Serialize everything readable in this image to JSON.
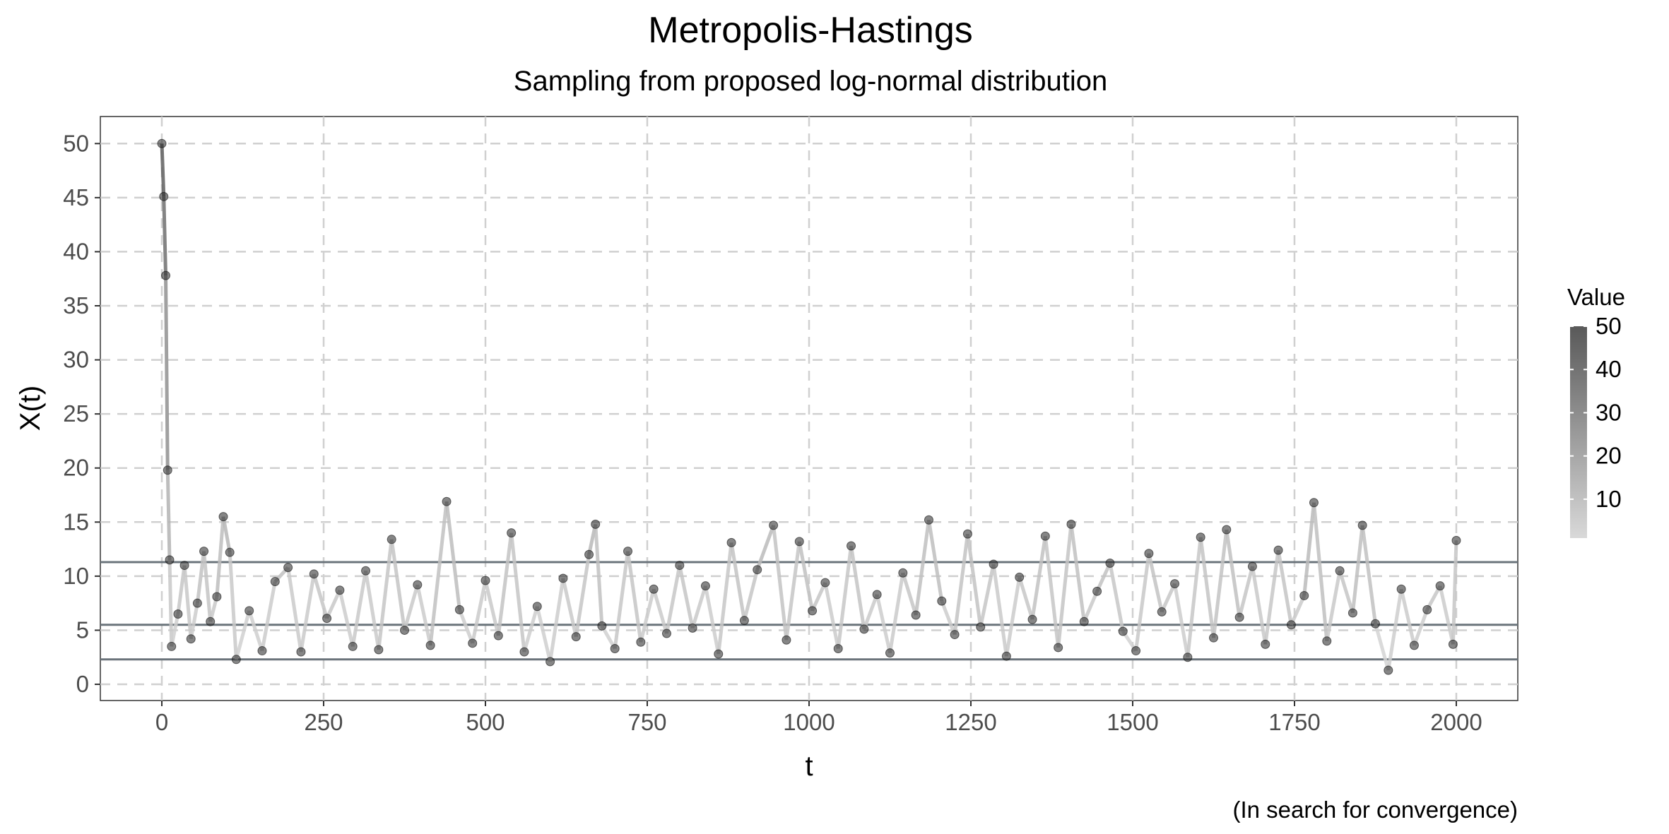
{
  "chart_data": {
    "type": "line",
    "title": "Metropolis-Hastings",
    "subtitle": "Sampling from proposed log-normal distribution",
    "caption": "(In search for convergence)",
    "xlabel": "t",
    "ylabel": "X(t)",
    "xlim": [
      -95,
      2095
    ],
    "ylim": [
      -1.5,
      52.5
    ],
    "x_ticks": [
      0,
      250,
      500,
      750,
      1000,
      1250,
      1500,
      1750,
      2000
    ],
    "y_ticks": [
      0,
      5,
      10,
      15,
      20,
      25,
      30,
      35,
      40,
      45,
      50
    ],
    "x_tick_labels": [
      "0",
      "250",
      "500",
      "750",
      "1000",
      "1250",
      "1500",
      "1750",
      "2000"
    ],
    "y_tick_labels": [
      "0",
      "5",
      "10",
      "15",
      "20",
      "25",
      "30",
      "35",
      "40",
      "45",
      "50"
    ],
    "grid": "dashed",
    "hlines": [
      11.3,
      5.5,
      2.3
    ],
    "hline_color": "#6b747b",
    "legend": {
      "title": "Value",
      "placement": "right",
      "type": "gradient",
      "range": [
        1,
        50
      ],
      "breaks": [
        10,
        20,
        30,
        40,
        50
      ],
      "break_labels": [
        "10",
        "20",
        "30",
        "40",
        "50"
      ],
      "color_low": "#d9d9d9",
      "color_high": "#595959"
    },
    "series": [
      {
        "x": [
          0,
          3,
          6,
          9,
          12,
          15,
          25,
          35,
          45,
          55,
          65,
          75,
          85,
          95,
          105,
          115,
          135,
          155,
          175,
          195,
          215,
          235,
          255,
          275,
          295,
          315,
          335,
          355,
          375,
          395,
          415,
          440,
          460,
          480,
          500,
          520,
          540,
          560,
          580,
          600,
          620,
          640,
          660,
          670,
          680,
          700,
          720,
          740,
          760,
          780,
          800,
          820,
          840,
          860,
          880,
          900,
          920,
          945,
          965,
          985,
          1005,
          1025,
          1045,
          1065,
          1085,
          1105,
          1125,
          1145,
          1165,
          1185,
          1205,
          1225,
          1245,
          1265,
          1285,
          1305,
          1325,
          1345,
          1365,
          1385,
          1405,
          1425,
          1445,
          1465,
          1485,
          1505,
          1525,
          1545,
          1565,
          1585,
          1605,
          1625,
          1645,
          1665,
          1685,
          1705,
          1725,
          1745,
          1765,
          1780,
          1800,
          1820,
          1840,
          1855,
          1875,
          1895,
          1915,
          1935,
          1955,
          1975,
          1995,
          2000
        ],
        "y": [
          50,
          45.1,
          37.8,
          19.8,
          11.5,
          3.5,
          6.5,
          11,
          4.2,
          7.5,
          12.3,
          5.8,
          8.1,
          15.5,
          12.2,
          2.3,
          6.8,
          3.1,
          9.5,
          10.8,
          3,
          10.2,
          6.1,
          8.7,
          3.5,
          10.5,
          3.2,
          13.4,
          5,
          9.2,
          3.6,
          16.9,
          6.9,
          3.8,
          9.6,
          4.5,
          14,
          3,
          7.2,
          2.1,
          9.8,
          4.4,
          12,
          14.8,
          5.4,
          3.3,
          12.3,
          3.9,
          8.8,
          4.7,
          11,
          5.2,
          9.1,
          2.8,
          13.1,
          5.9,
          10.6,
          14.7,
          4.1,
          13.2,
          6.8,
          9.4,
          3.3,
          12.8,
          5.1,
          8.3,
          2.9,
          10.3,
          6.4,
          15.2,
          7.7,
          4.6,
          13.9,
          5.3,
          11.1,
          2.6,
          9.9,
          6,
          13.7,
          3.4,
          14.8,
          5.8,
          8.6,
          11.2,
          4.9,
          3.1,
          12.1,
          6.7,
          9.3,
          2.5,
          13.6,
          4.3,
          14.3,
          6.2,
          10.9,
          3.7,
          12.4,
          5.5,
          8.2,
          16.8,
          4,
          10.5,
          6.6,
          14.7,
          5.6,
          1.3,
          8.8,
          3.6,
          6.9,
          9.1,
          3.7,
          13.3
        ]
      }
    ]
  }
}
